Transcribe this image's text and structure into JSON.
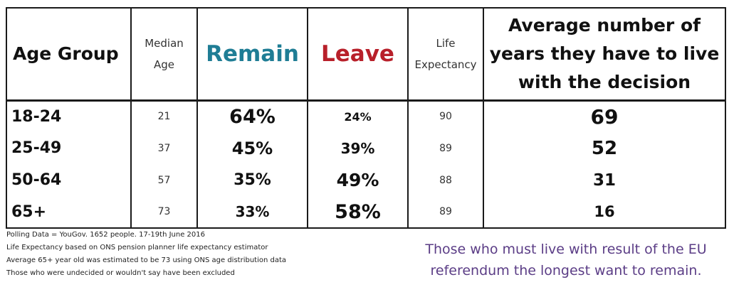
{
  "colors": {
    "remain": "#1f7d95",
    "leave": "#b8202a",
    "caption": "#5b3d86",
    "text": "#111111",
    "border": "#1a1a1a"
  },
  "chart_data": {
    "type": "table",
    "columns": {
      "age_group": "Age Group",
      "median_age": [
        "Median",
        "Age"
      ],
      "remain": "Remain",
      "leave": "Leave",
      "life_expectancy": [
        "Life",
        "Expectancy"
      ],
      "years": [
        "Average number of",
        "years they have to live",
        "with the decision"
      ]
    },
    "rows": [
      {
        "age_group": "18-24",
        "median_age": "21",
        "remain": "64%",
        "leave": "24%",
        "life_expectancy": "90",
        "years": "69"
      },
      {
        "age_group": "25-49",
        "median_age": "37",
        "remain": "45%",
        "leave": "39%",
        "life_expectancy": "89",
        "years": "52"
      },
      {
        "age_group": "50-64",
        "median_age": "57",
        "remain": "35%",
        "leave": "49%",
        "life_expectancy": "88",
        "years": "31"
      },
      {
        "age_group": "65+",
        "median_age": "73",
        "remain": "33%",
        "leave": "58%",
        "life_expectancy": "89",
        "years": "16"
      }
    ]
  },
  "notes": [
    "Polling Data = YouGov. 1652 people. 17-19th June 2016",
    "Life Expectancy based on ONS pension planner life expectancy estimator",
    "Average 65+ year old was estimated to be 73 using ONS age distribution data",
    "Those who were undecided or wouldn't say have been excluded"
  ],
  "caption": [
    "Those who must live with result of the EU",
    "referendum the longest want to remain."
  ]
}
